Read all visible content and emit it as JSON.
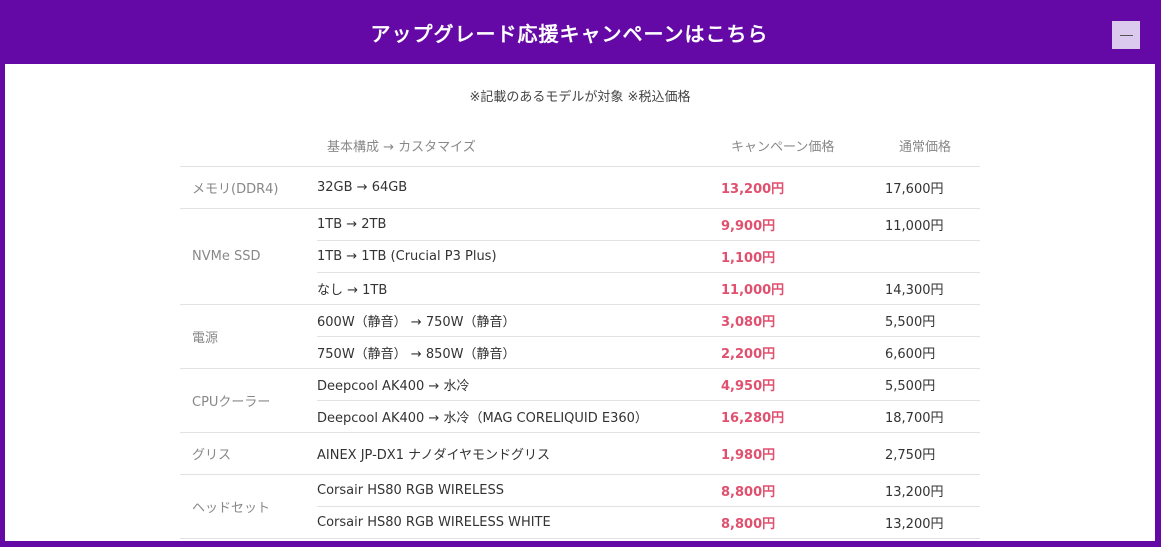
{
  "header": {
    "title": "アップグレード応援キャンペーンはこちら",
    "collapse_icon": "minus-icon"
  },
  "note": "※記載のあるモデルが対象 ※税込価格",
  "columns": {
    "item": "基本構成 → カスタマイズ",
    "campaign": "キャンペーン価格",
    "normal": "通常価格"
  },
  "colors": {
    "brand": "#6409a6",
    "campaign_price": "#e0506f"
  },
  "groups": [
    {
      "category": "メモリ(DDR4)",
      "rows": [
        {
          "item": "32GB → 64GB",
          "campaign": "13,200円",
          "normal": "17,600円"
        }
      ]
    },
    {
      "category": "NVMe SSD",
      "rows": [
        {
          "item": "1TB → 2TB",
          "campaign": "9,900円",
          "normal": "11,000円"
        },
        {
          "item": "1TB → 1TB (Crucial P3 Plus)",
          "campaign": "1,100円",
          "normal": ""
        },
        {
          "item": "なし → 1TB",
          "campaign": "11,000円",
          "normal": "14,300円"
        }
      ]
    },
    {
      "category": "電源",
      "rows": [
        {
          "item": "600W（静音） → 750W（静音）",
          "campaign": "3,080円",
          "normal": "5,500円"
        },
        {
          "item": "750W（静音） → 850W（静音）",
          "campaign": "2,200円",
          "normal": "6,600円"
        }
      ]
    },
    {
      "category": "CPUクーラー",
      "rows": [
        {
          "item": "Deepcool AK400 → 水冷",
          "campaign": "4,950円",
          "normal": "5,500円"
        },
        {
          "item": "Deepcool AK400 → 水冷（MAG CORELIQUID E360）",
          "campaign": "16,280円",
          "normal": "18,700円"
        }
      ]
    },
    {
      "category": "グリス",
      "rows": [
        {
          "item": "AINEX JP-DX1 ナノダイヤモンドグリス",
          "campaign": "1,980円",
          "normal": "2,750円"
        }
      ]
    },
    {
      "category": "ヘッドセット",
      "rows": [
        {
          "item": "Corsair HS80 RGB WIRELESS",
          "campaign": "8,800円",
          "normal": "13,200円"
        },
        {
          "item": "Corsair HS80 RGB WIRELESS WHITE",
          "campaign": "8,800円",
          "normal": "13,200円"
        }
      ]
    }
  ]
}
